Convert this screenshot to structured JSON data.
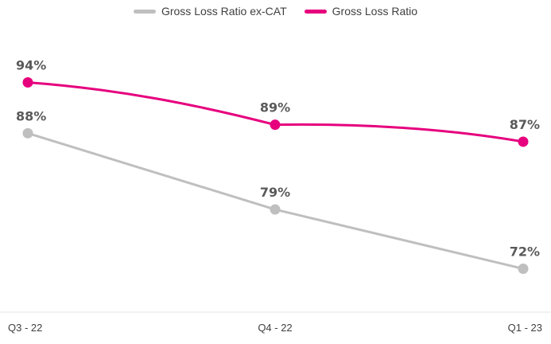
{
  "chart_data": {
    "type": "line",
    "title": "",
    "xlabel": "",
    "ylabel": "",
    "categories": [
      "Q3 - 22",
      "Q4 - 22",
      "Q1 - 23"
    ],
    "ylim": [
      65,
      100
    ],
    "grid": false,
    "legend_position": "top-center",
    "series": [
      {
        "name": "Gross Loss Ratio ex-CAT",
        "color": "#bfbfbf",
        "values": [
          88,
          79,
          72
        ],
        "labels": [
          "88%",
          "79%",
          "72%"
        ]
      },
      {
        "name": "Gross Loss Ratio",
        "color": "#e6007e",
        "values": [
          94,
          89,
          87
        ],
        "labels": [
          "94%",
          "89%",
          "87%"
        ]
      }
    ]
  }
}
